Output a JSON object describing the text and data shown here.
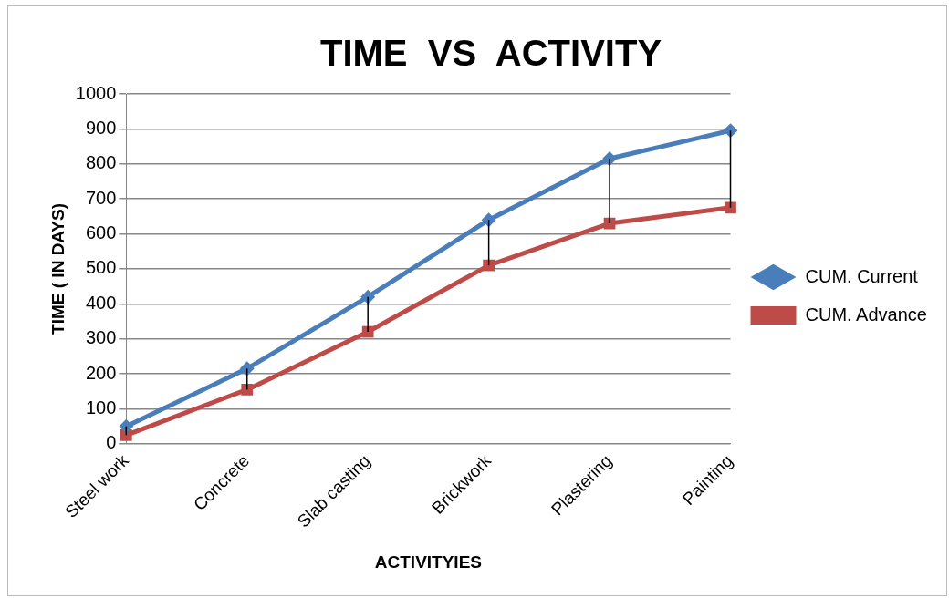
{
  "chart_data": {
    "type": "line",
    "title": "TIME  VS  ACTIVITY",
    "xlabel": "ACTIVITYIES",
    "ylabel": "TIME ( IN DAYS)",
    "categories": [
      "Steel work",
      "Concrete",
      "Slab casting",
      "Brickwork",
      "Plastering",
      "Painting"
    ],
    "series": [
      {
        "name": "CUM. Current",
        "color": "#4a7ebb",
        "marker": "diamond",
        "values": [
          50,
          215,
          420,
          640,
          815,
          895
        ],
        "errors": [
          [
            25,
            50
          ],
          [
            155,
            215
          ],
          [
            320,
            420
          ],
          [
            510,
            640
          ],
          [
            630,
            815
          ],
          [
            675,
            895
          ]
        ]
      },
      {
        "name": "CUM. Advance",
        "color": "#be4b48",
        "marker": "square",
        "values": [
          25,
          155,
          320,
          510,
          630,
          675
        ]
      }
    ],
    "ylim": [
      0,
      1000
    ],
    "yticks": [
      0,
      100,
      200,
      300,
      400,
      500,
      600,
      700,
      800,
      900,
      1000
    ],
    "grid": "y",
    "legend": "right"
  }
}
